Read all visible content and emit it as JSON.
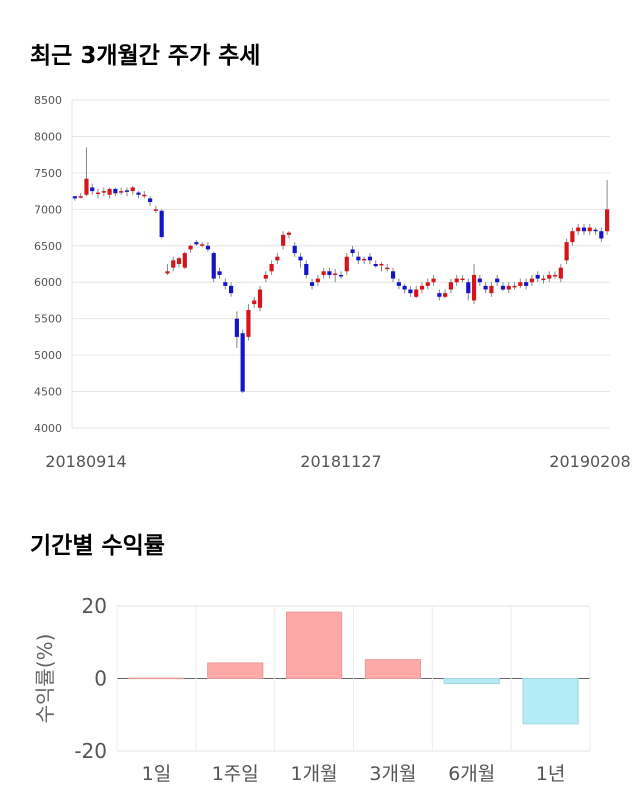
{
  "section1": {
    "title": "최근 3개월간 주가 추세"
  },
  "section2": {
    "title": "기간별 수익률"
  },
  "chart_data": [
    {
      "type": "candlestick",
      "title": "최근 3개월간 주가 추세",
      "ylim": [
        4000,
        8500
      ],
      "y_ticks": [
        "8500",
        "8000",
        "7500",
        "7000",
        "6500",
        "6000",
        "5500",
        "5000",
        "4500",
        "4000"
      ],
      "x_tick_labels": [
        "20180914",
        "20181127",
        "20190208"
      ],
      "grid": true,
      "colors": {
        "up": "#d6151b",
        "down": "#1414c8",
        "wick": "#888888"
      },
      "candles": [
        [
          7180,
          7150,
          7180,
          7120
        ],
        [
          7180,
          7180,
          7220,
          7150
        ],
        [
          7200,
          7420,
          7850,
          7180
        ],
        [
          7300,
          7250,
          7350,
          7200
        ],
        [
          7220,
          7230,
          7280,
          7150
        ],
        [
          7250,
          7250,
          7300,
          7180
        ],
        [
          7200,
          7280,
          7300,
          7150
        ],
        [
          7280,
          7220,
          7300,
          7180
        ],
        [
          7230,
          7250,
          7300,
          7200
        ],
        [
          7260,
          7240,
          7300,
          7180
        ],
        [
          7250,
          7300,
          7320,
          7200
        ],
        [
          7230,
          7200,
          7250,
          7150
        ],
        [
          7200,
          7200,
          7250,
          7150
        ],
        [
          7150,
          7100,
          7180,
          7050
        ],
        [
          7000,
          7000,
          7050,
          6950
        ],
        [
          6980,
          6620,
          7000,
          6600
        ],
        [
          6120,
          6150,
          6250,
          6100
        ],
        [
          6200,
          6300,
          6350,
          6150
        ],
        [
          6250,
          6330,
          6350,
          6200
        ],
        [
          6200,
          6400,
          6420,
          6180
        ],
        [
          6450,
          6500,
          6520,
          6400
        ],
        [
          6550,
          6520,
          6580,
          6500
        ],
        [
          6520,
          6520,
          6550,
          6480
        ],
        [
          6500,
          6450,
          6550,
          6420
        ],
        [
          6400,
          6050,
          6420,
          6000
        ],
        [
          6150,
          6100,
          6200,
          6050
        ],
        [
          6000,
          5950,
          6050,
          5900
        ],
        [
          5950,
          5850,
          6000,
          5800
        ],
        [
          5500,
          5250,
          5600,
          5100
        ],
        [
          5300,
          4500,
          5350,
          4480
        ],
        [
          5250,
          5620,
          5700,
          5200
        ],
        [
          5700,
          5750,
          5800,
          5650
        ],
        [
          5650,
          5900,
          5950,
          5600
        ],
        [
          6050,
          6100,
          6150,
          6000
        ],
        [
          6150,
          6250,
          6300,
          6100
        ],
        [
          6300,
          6350,
          6400,
          6250
        ],
        [
          6500,
          6650,
          6700,
          6450
        ],
        [
          6650,
          6680,
          6700,
          6600
        ],
        [
          6500,
          6400,
          6550,
          6350
        ],
        [
          6350,
          6300,
          6400,
          6200
        ],
        [
          6250,
          6100,
          6300,
          6050
        ],
        [
          6000,
          5950,
          6050,
          5900
        ],
        [
          6000,
          6050,
          6100,
          5950
        ],
        [
          6100,
          6150,
          6200,
          6050
        ],
        [
          6150,
          6100,
          6200,
          6050
        ],
        [
          6120,
          6120,
          6180,
          6000
        ],
        [
          6100,
          6080,
          6150,
          6050
        ],
        [
          6150,
          6350,
          6400,
          6100
        ],
        [
          6450,
          6400,
          6500,
          6350
        ],
        [
          6350,
          6300,
          6420,
          6250
        ],
        [
          6300,
          6320,
          6350,
          6250
        ],
        [
          6350,
          6300,
          6400,
          6250
        ],
        [
          6250,
          6220,
          6300,
          6200
        ],
        [
          6230,
          6250,
          6280,
          6150
        ],
        [
          6200,
          6200,
          6250,
          6150
        ],
        [
          6150,
          6050,
          6200,
          6000
        ],
        [
          6000,
          5950,
          6050,
          5900
        ],
        [
          5950,
          5900,
          5980,
          5850
        ],
        [
          5900,
          5850,
          5950,
          5800
        ],
        [
          5800,
          5900,
          5950,
          5780
        ],
        [
          5900,
          5950,
          6000,
          5850
        ],
        [
          5950,
          6000,
          6050,
          5900
        ],
        [
          6000,
          6050,
          6100,
          5950
        ],
        [
          5850,
          5800,
          5900,
          5750
        ],
        [
          5800,
          5850,
          5900,
          5780
        ],
        [
          5900,
          6000,
          6050,
          5850
        ],
        [
          6000,
          6050,
          6100,
          5950
        ],
        [
          6050,
          6050,
          6100,
          6000
        ],
        [
          6000,
          5850,
          6050,
          5750
        ],
        [
          5750,
          6100,
          6250,
          5700
        ],
        [
          6050,
          6000,
          6100,
          5950
        ],
        [
          5950,
          5900,
          6000,
          5850
        ],
        [
          5850,
          5950,
          6000,
          5800
        ],
        [
          6050,
          6000,
          6100,
          5950
        ],
        [
          5950,
          5900,
          6000,
          5880
        ],
        [
          5900,
          5950,
          6000,
          5850
        ],
        [
          5950,
          5950,
          6000,
          5900
        ],
        [
          5950,
          6000,
          6050,
          5920
        ],
        [
          6000,
          5950,
          6050,
          5900
        ],
        [
          6000,
          6050,
          6100,
          5950
        ],
        [
          6100,
          6050,
          6150,
          6000
        ],
        [
          6050,
          6050,
          6100,
          5980
        ],
        [
          6050,
          6100,
          6150,
          6000
        ],
        [
          6100,
          6100,
          6150,
          6050
        ],
        [
          6050,
          6200,
          6250,
          6000
        ],
        [
          6300,
          6550,
          6600,
          6250
        ],
        [
          6550,
          6700,
          6750,
          6500
        ],
        [
          6700,
          6750,
          6800,
          6650
        ],
        [
          6750,
          6700,
          6800,
          6650
        ],
        [
          6700,
          6750,
          6800,
          6650
        ],
        [
          6720,
          6700,
          6750,
          6650
        ],
        [
          6700,
          6600,
          6750,
          6550
        ],
        [
          6700,
          7000,
          7400,
          6650
        ]
      ]
    },
    {
      "type": "bar",
      "title": "기간별 수익률",
      "ylabel": "수익률(%)",
      "ylim": [
        -20,
        20
      ],
      "y_ticks": [
        "20",
        "0",
        "-20"
      ],
      "categories": [
        "1일",
        "1주일",
        "1개월",
        "3개월",
        "6개월",
        "1년"
      ],
      "values": [
        0.1,
        4.3,
        18.3,
        5.2,
        -1.4,
        -12.5
      ],
      "colors": {
        "positive": "#ffa8a8",
        "negative": "#b3ecf5"
      }
    }
  ]
}
